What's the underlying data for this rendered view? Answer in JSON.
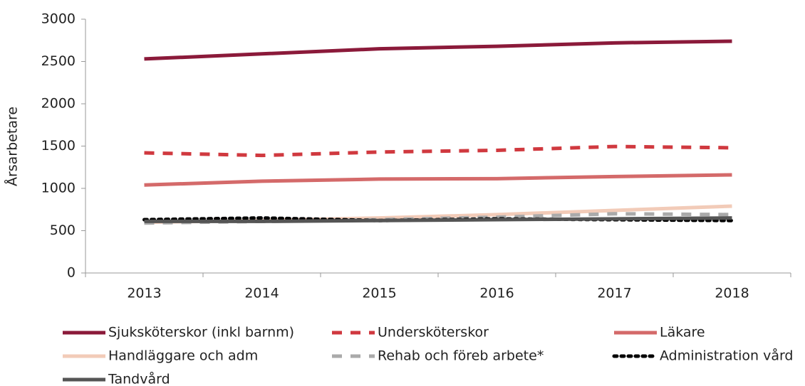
{
  "chart_data": {
    "type": "line",
    "y_label": "Årsarbetare",
    "categories": [
      "2013",
      "2014",
      "2015",
      "2016",
      "2017",
      "2018"
    ],
    "ylim": [
      0,
      3000
    ],
    "yticks": [
      0,
      500,
      1000,
      1500,
      2000,
      2500,
      3000
    ],
    "grid": false,
    "legend": "bottom",
    "series": [
      {
        "name": "Sjuksköterskor (inkl barnm)",
        "color": "#8b1a3a",
        "dash": "solid",
        "values": [
          2530,
          2590,
          2650,
          2680,
          2720,
          2740
        ]
      },
      {
        "name": "Undersköterskor",
        "color": "#d0393f",
        "dash": "dashed",
        "values": [
          1420,
          1390,
          1430,
          1450,
          1495,
          1480
        ]
      },
      {
        "name": "Läkare",
        "color": "#d46a6a",
        "dash": "solid",
        "values": [
          1040,
          1085,
          1110,
          1115,
          1140,
          1160
        ]
      },
      {
        "name": "Handläggare och adm",
        "color": "#f2cbb8",
        "dash": "solid",
        "values": [
          600,
          620,
          650,
          690,
          740,
          790
        ]
      },
      {
        "name": "Rehab och föreb arbete*",
        "color": "#aaaaaa",
        "dash": "dashed",
        "values": [
          590,
          610,
          630,
          660,
          700,
          690
        ]
      },
      {
        "name": "Administration vård",
        "color": "#000000",
        "dash": "dotted",
        "values": [
          630,
          650,
          620,
          640,
          630,
          620
        ]
      },
      {
        "name": "Tandvård",
        "color": "#555555",
        "dash": "solid",
        "values": [
          610,
          610,
          620,
          630,
          640,
          650
        ]
      }
    ]
  }
}
